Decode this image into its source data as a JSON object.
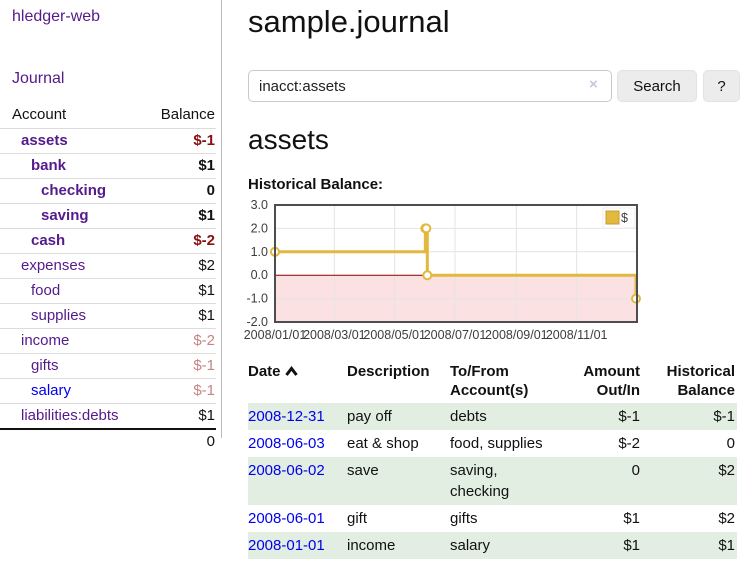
{
  "sidebar": {
    "brand": "hledger-web",
    "journal_link": "Journal",
    "table": {
      "headers": [
        "Account",
        "Balance"
      ],
      "rows": [
        {
          "account": "assets",
          "balance": "$-1",
          "depth": 1,
          "bold": true,
          "tone": "strong"
        },
        {
          "account": "bank",
          "balance": "$1",
          "depth": 2,
          "bold": true
        },
        {
          "account": "checking",
          "balance": "0",
          "depth": 3,
          "bold": true
        },
        {
          "account": "saving",
          "balance": "$1",
          "depth": 3,
          "bold": true
        },
        {
          "account": "cash",
          "balance": "$-2",
          "depth": 2,
          "bold": true,
          "tone": "strong"
        },
        {
          "account": "expenses",
          "balance": "$2",
          "depth": 1
        },
        {
          "account": "food",
          "balance": "$1",
          "depth": 2
        },
        {
          "account": "supplies",
          "balance": "$1",
          "depth": 2
        },
        {
          "account": "income",
          "balance": "$-2",
          "depth": 1,
          "tone": "soft"
        },
        {
          "account": "gifts",
          "balance": "$-1",
          "depth": 2,
          "tone": "soft"
        },
        {
          "account": "salary",
          "balance": "$-1",
          "depth": 2,
          "tone": "soft",
          "blue": true
        },
        {
          "account": "liabilities:debts",
          "balance": "$1",
          "depth": 1
        }
      ],
      "total": "0"
    }
  },
  "main": {
    "title": "sample.journal",
    "search": {
      "value": "inacct:assets",
      "clear_icon": "×",
      "search_button": "Search",
      "help_button": "?"
    },
    "account_heading": "assets",
    "chart_label": "Historical Balance:"
  },
  "chart_data": {
    "type": "line",
    "title": "Historical Balance",
    "step": true,
    "series": [
      {
        "name": "$",
        "points": [
          [
            "2008-01-01",
            1
          ],
          [
            "2008-06-01",
            2
          ],
          [
            "2008-06-02",
            2
          ],
          [
            "2008-06-03",
            0
          ],
          [
            "2008-12-31",
            -1
          ]
        ]
      }
    ],
    "x_domain": [
      "2008-01-01",
      "2009-01-01"
    ],
    "x_ticks": [
      {
        "date": "2008-01-01",
        "label": "2008/01/01"
      },
      {
        "date": "2008-03-01",
        "label": "2008/03/01"
      },
      {
        "date": "2008-05-01",
        "label": "2008/05/01"
      },
      {
        "date": "2008-07-01",
        "label": "2008/07/01"
      },
      {
        "date": "2008-09-01",
        "label": "2008/09/01"
      },
      {
        "date": "2008-11-01",
        "label": "2008/11/01"
      }
    ],
    "ylim": [
      -2,
      3
    ],
    "y_ticks": [
      3,
      2,
      1,
      0,
      -1,
      -2
    ],
    "legend_position": "top-right",
    "grid": true,
    "colors": {
      "line": "#e3b83e",
      "marker_fill": "#ffffff",
      "negative_region": "#fbe1e1",
      "zero_line": "#8b0000",
      "grid": "#e4e4e4",
      "border": "#4d4d4d"
    }
  },
  "transactions": {
    "headers": {
      "date": {
        "label": "Date"
      },
      "description": {
        "label": "Description"
      },
      "accounts": {
        "line1": "To/From",
        "line2": "Account(s)"
      },
      "amount": {
        "line1": "Amount",
        "line2": "Out/In"
      },
      "balance": {
        "line1": "Historical",
        "line2": "Balance"
      }
    },
    "rows": [
      {
        "date": "2008-12-31",
        "description": "pay off",
        "accounts": "debts",
        "amount": "$-1",
        "amount_neg": true,
        "balance": "$-1",
        "balance_neg": true
      },
      {
        "date": "2008-06-03",
        "description": "eat & shop",
        "accounts": "food, supplies",
        "amount": "$-2",
        "amount_neg": true,
        "balance": "0"
      },
      {
        "date": "2008-06-02",
        "description": "save",
        "accounts": "saving,\nchecking",
        "amount": "0",
        "balance": "$2"
      },
      {
        "date": "2008-06-01",
        "description": "gift",
        "accounts": "gifts",
        "amount": "$1",
        "balance": "$2"
      },
      {
        "date": "2008-01-01",
        "description": "income",
        "accounts": "salary",
        "amount": "$1",
        "balance": "$1"
      }
    ]
  }
}
